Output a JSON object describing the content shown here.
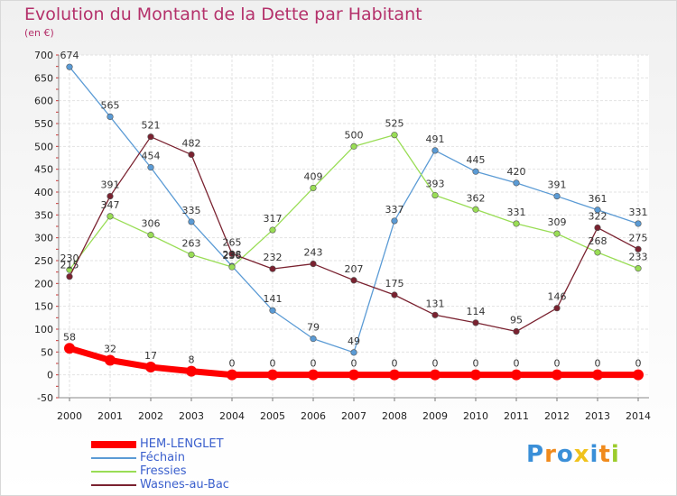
{
  "chart_data": {
    "type": "line",
    "title": "Evolution du Montant de la Dette par Habitant",
    "unit_label": "(en €)",
    "x": [
      "2000",
      "2001",
      "2002",
      "2003",
      "2004",
      "2005",
      "2006",
      "2007",
      "2008",
      "2009",
      "2010",
      "2011",
      "2012",
      "2013",
      "2014"
    ],
    "ylim": [
      -50,
      700
    ],
    "yticks": [
      -50,
      0,
      50,
      100,
      150,
      200,
      250,
      300,
      350,
      400,
      450,
      500,
      550,
      600,
      650,
      700
    ],
    "grid": true,
    "legend_position": "bottom-left",
    "series": [
      {
        "name": "HEM-LENGLET",
        "color": "#ff0000",
        "values": [
          58,
          32,
          17,
          8,
          0,
          0,
          0,
          0,
          0,
          0,
          0,
          0,
          0,
          0,
          0
        ]
      },
      {
        "name": "Féchain",
        "color": "#5b9bd5",
        "values": [
          674,
          565,
          454,
          335,
          238,
          141,
          79,
          49,
          337,
          491,
          445,
          420,
          391,
          361,
          331
        ]
      },
      {
        "name": "Fressies",
        "color": "#99dd55",
        "values": [
          230,
          347,
          306,
          263,
          236,
          317,
          409,
          500,
          525,
          393,
          362,
          331,
          309,
          268,
          233
        ]
      },
      {
        "name": "Wasnes-au-Bac",
        "color": "#7a2230",
        "values": [
          215,
          391,
          521,
          482,
          265,
          232,
          243,
          207,
          175,
          131,
          114,
          95,
          146,
          322,
          275
        ]
      }
    ]
  },
  "logo": {
    "letters": [
      "P",
      "r",
      "o",
      "x",
      "i",
      "t",
      "i"
    ],
    "colors": [
      "#3a8fd8",
      "#f08a1c",
      "#3a8fd8",
      "#f0c21c",
      "#3a8fd8",
      "#f08a1c",
      "#9ccc2c"
    ]
  }
}
